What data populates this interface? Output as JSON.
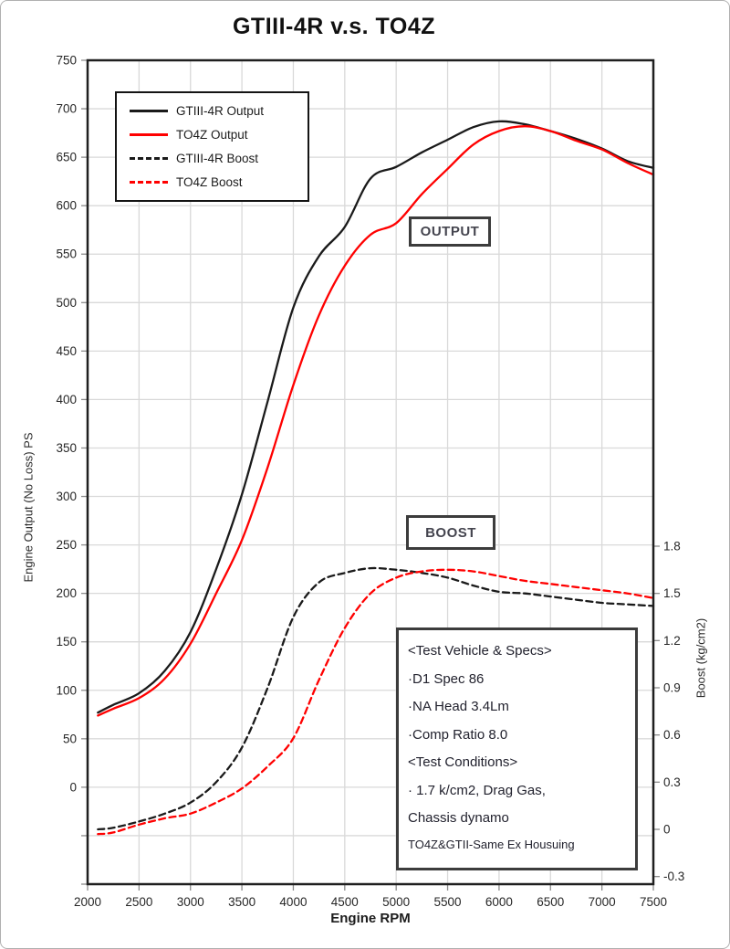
{
  "page": {
    "title": "GTIII-4R v.s. TO4Z"
  },
  "chart_data": {
    "type": "line",
    "title": "GTIII-4R v.s. TO4Z",
    "grid": true,
    "legend_position": "top-left",
    "x_axis": {
      "label": "Engine RPM",
      "min": 2000,
      "max": 7500,
      "step": 500,
      "ticks": [
        2000,
        2500,
        3000,
        3500,
        4000,
        4500,
        5000,
        5500,
        6000,
        6500,
        7000,
        7500
      ]
    },
    "y_left_axis": {
      "label": "Engine Output (No Loss) PS",
      "min": -100,
      "max": 750,
      "step": 50,
      "ticks": [
        0,
        50,
        100,
        150,
        200,
        250,
        300,
        350,
        400,
        450,
        500,
        550,
        600,
        650,
        700,
        750
      ]
    },
    "y_right_axis": {
      "label": "Boost (kg/cm2)",
      "min": -0.3,
      "max": 1.8,
      "step": 0.3,
      "ticks": [
        -0.3,
        0,
        0.3,
        0.6,
        0.9,
        1.2,
        1.5,
        1.8
      ]
    },
    "x": [
      2100,
      2250,
      2500,
      2750,
      3000,
      3250,
      3500,
      3750,
      4000,
      4250,
      4500,
      4750,
      5000,
      5250,
      5500,
      5750,
      6000,
      6250,
      6500,
      6750,
      7000,
      7250,
      7500
    ],
    "series": [
      {
        "name": "GTIII-4R Output",
        "axis": "left",
        "color": "#1a1a1a",
        "dash": false,
        "values": [
          77,
          85,
          97,
          120,
          160,
          225,
          302,
          398,
          495,
          548,
          578,
          628,
          640,
          655,
          668,
          681,
          687,
          684,
          677,
          669,
          659,
          646,
          639
        ]
      },
      {
        "name": "TO4Z Output",
        "axis": "left",
        "color": "#ff0000",
        "dash": false,
        "values": [
          74,
          81,
          92,
          112,
          148,
          200,
          255,
          330,
          415,
          487,
          538,
          570,
          582,
          612,
          638,
          663,
          677,
          682,
          677,
          667,
          658,
          644,
          632
        ]
      },
      {
        "name": "GTIII-4R Boost",
        "axis": "right",
        "color": "#1a1a1a",
        "dash": true,
        "values": [
          0.0,
          0.01,
          0.05,
          0.1,
          0.17,
          0.3,
          0.52,
          0.9,
          1.35,
          1.57,
          1.63,
          1.66,
          1.65,
          1.63,
          1.6,
          1.55,
          1.51,
          1.5,
          1.48,
          1.46,
          1.44,
          1.43,
          1.42
        ]
      },
      {
        "name": "TO4Z Boost",
        "axis": "right",
        "color": "#ff0000",
        "dash": true,
        "values": [
          -0.03,
          -0.02,
          0.03,
          0.07,
          0.1,
          0.17,
          0.26,
          0.4,
          0.58,
          0.95,
          1.28,
          1.5,
          1.6,
          1.64,
          1.65,
          1.64,
          1.61,
          1.58,
          1.56,
          1.54,
          1.52,
          1.5,
          1.47
        ]
      }
    ]
  },
  "annotations": {
    "output_label": "OUTPUT",
    "boost_label": "BOOST",
    "spec_box_lines": [
      "<Test Vehicle & Specs>",
      "·D1 Spec 86",
      "·NA Head 3.4Lm",
      "·Comp Ratio 8.0",
      "<Test Conditions>",
      "· 1.7 k/cm2, Drag Gas,",
      " Chassis dynamo",
      "TO4Z&GTII-Same Ex Housuing"
    ]
  },
  "colors": {
    "series_black": "#1a1a1a",
    "series_red": "#ff0000",
    "gridline": "#d9d9d9",
    "tick": "#8c8c8c",
    "plot_border": "#1f1f1f",
    "tick_label": "#262626"
  }
}
